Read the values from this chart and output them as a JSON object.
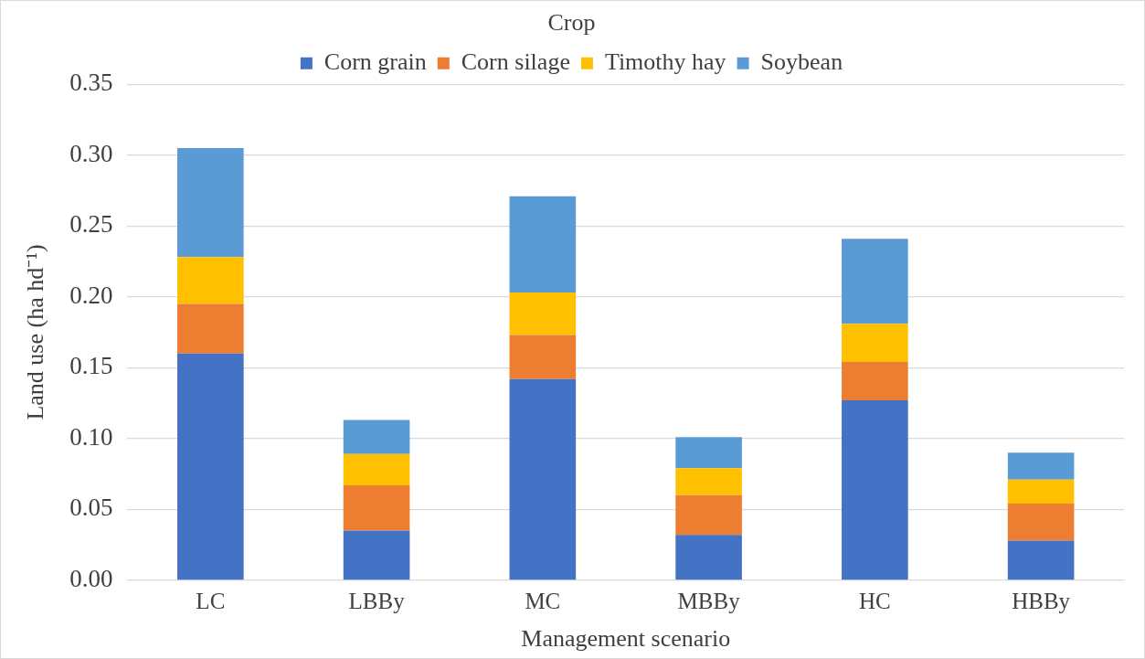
{
  "chart_data": {
    "type": "bar",
    "stacked": true,
    "xlabel": "Management scenario",
    "ylabel": "Land use (ha hd⁻¹)",
    "legend_title": "Crop",
    "legend": "top",
    "categories": [
      "LC",
      "LBBy",
      "MC",
      "MBBy",
      "HC",
      "HBBy"
    ],
    "series": [
      {
        "name": "Corn grain",
        "color": "#4472c4",
        "values": [
          0.16,
          0.035,
          0.142,
          0.032,
          0.127,
          0.028
        ]
      },
      {
        "name": "Corn silage",
        "color": "#ed7d31",
        "values": [
          0.035,
          0.032,
          0.031,
          0.028,
          0.027,
          0.026
        ]
      },
      {
        "name": "Timothy hay",
        "color": "#ffc000",
        "values": [
          0.033,
          0.022,
          0.03,
          0.019,
          0.027,
          0.017
        ]
      },
      {
        "name": "Soybean",
        "color": "#5b9bd5",
        "values": [
          0.077,
          0.024,
          0.068,
          0.022,
          0.06,
          0.019
        ]
      }
    ],
    "ylim": [
      0,
      0.35
    ],
    "yticks": [
      {
        "value": 0,
        "label": "0.00"
      },
      0.05,
      {
        "value": 0.1,
        "label": "0.10"
      },
      0.15,
      {
        "value": 0.2,
        "label": "0.20"
      },
      0.25,
      {
        "value": 0.3,
        "label": "0.30"
      },
      0.35
    ],
    "grid": "y"
  }
}
